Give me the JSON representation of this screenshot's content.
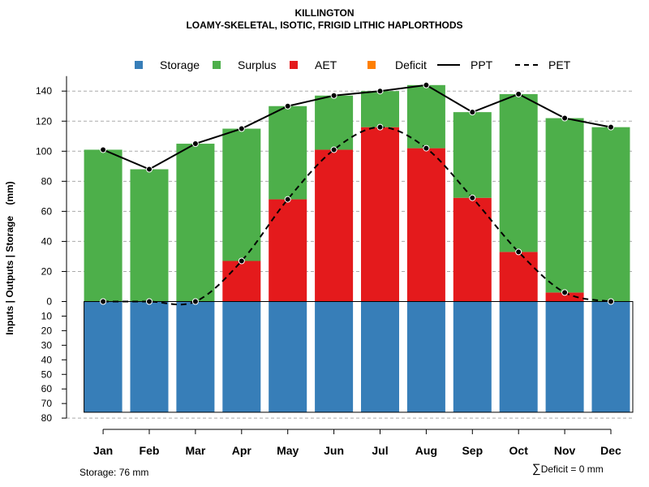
{
  "chart_data": {
    "type": "bar",
    "title": "KILLINGTON",
    "subtitle": "LOAMY-SKELETAL, ISOTIC, FRIGID LITHIC HAPLORTHODS",
    "ylabel": "Inputs | Outputs | Storage    (mm)",
    "categories": [
      "Jan",
      "Feb",
      "Mar",
      "Apr",
      "May",
      "Jun",
      "Jul",
      "Aug",
      "Sep",
      "Oct",
      "Nov",
      "Dec"
    ],
    "ylim_upper": [
      0,
      150
    ],
    "ylim_lower": [
      0,
      80
    ],
    "upper_ticks": [
      "140",
      "120",
      "100",
      "80",
      "60",
      "40",
      "20",
      "0"
    ],
    "lower_ticks": [
      "10",
      "20",
      "30",
      "40",
      "50",
      "60",
      "70",
      "80"
    ],
    "series": [
      {
        "name": "Storage",
        "values": [
          76,
          76,
          76,
          76,
          76,
          76,
          76,
          76,
          76,
          76,
          76,
          76
        ]
      },
      {
        "name": "Surplus",
        "values": [
          101,
          88,
          105,
          88,
          62,
          36,
          24,
          42,
          57,
          105,
          116,
          116
        ]
      },
      {
        "name": "AET",
        "values": [
          0,
          0,
          0,
          27,
          68,
          101,
          116,
          102,
          69,
          33,
          6,
          0
        ]
      },
      {
        "name": "Deficit",
        "values": [
          0,
          0,
          0,
          0,
          0,
          0,
          0,
          0,
          0,
          0,
          0,
          0
        ]
      },
      {
        "name": "PPT",
        "values": [
          101,
          88,
          105,
          115,
          130,
          137,
          140,
          144,
          126,
          138,
          122,
          116
        ]
      },
      {
        "name": "PET",
        "values": [
          0,
          0,
          0,
          27,
          68,
          101,
          116,
          102,
          69,
          33,
          6,
          0
        ]
      }
    ],
    "legend": {
      "position": "top",
      "items": [
        {
          "label": "Storage",
          "kind": "box",
          "color": "#377EB8"
        },
        {
          "label": "Surplus",
          "kind": "box",
          "color": "#4DAF4A"
        },
        {
          "label": "AET",
          "kind": "box",
          "color": "#E41A1C"
        },
        {
          "label": "Deficit",
          "kind": "box",
          "color": "#FF7F00"
        },
        {
          "label": "PPT",
          "kind": "solid-line",
          "color": "#000000"
        },
        {
          "label": "PET",
          "kind": "dashed-line",
          "color": "#000000"
        }
      ]
    },
    "grid": true
  },
  "footer": {
    "storage_text": "Storage: 76 mm",
    "deficit_symbol": "∑",
    "deficit_text": "Deficit = 0 mm"
  }
}
